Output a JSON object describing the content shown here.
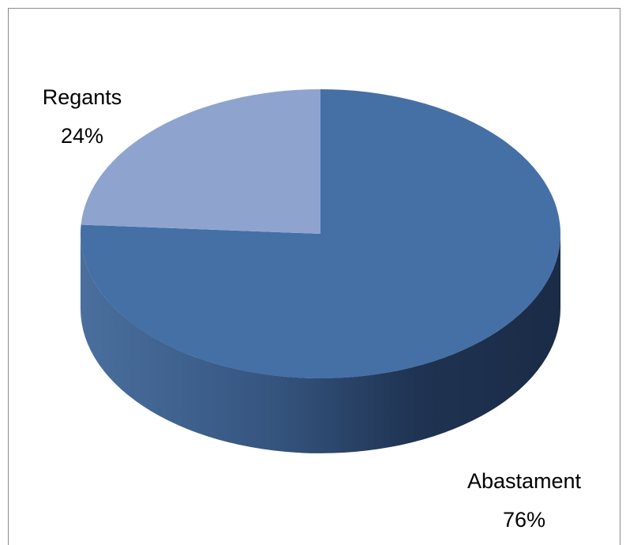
{
  "chart_data": {
    "type": "pie",
    "style": "3d",
    "slices": [
      {
        "name": "Abastament",
        "value": 76,
        "label": "76%",
        "color": "#4470a6"
      },
      {
        "name": "Regants",
        "value": 24,
        "label": "24%",
        "color": "#8ea4cf"
      }
    ],
    "legend": "none"
  }
}
